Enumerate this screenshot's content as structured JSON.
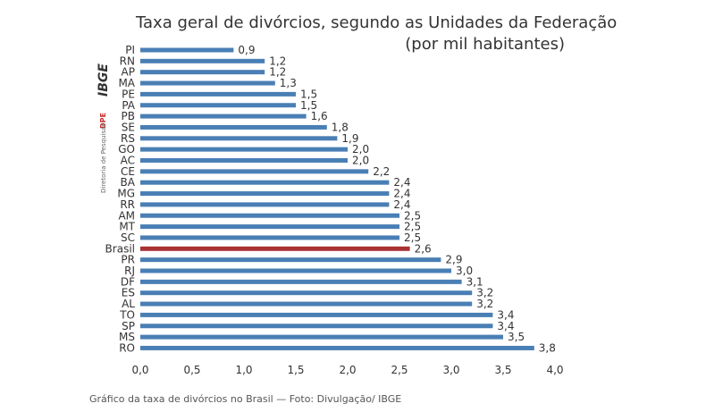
{
  "branding": {
    "logo": "IBGE",
    "department_abbr": "DPE",
    "department": "Diretoria de Pesquisas"
  },
  "caption": "Gráfico da taxa de divórcios no Brasil — Foto: Divulgação/ IBGE",
  "chart_data": {
    "type": "bar",
    "orientation": "horizontal",
    "title": "Taxa geral de divórcios, segundo as Unidades da Federação",
    "subtitle": "(por mil habitantes)",
    "xlabel": "",
    "ylabel": "",
    "xlim": [
      0,
      4.0
    ],
    "xticks": [
      "0,0",
      "0,5",
      "1,0",
      "1,5",
      "2,0",
      "2,5",
      "3,0",
      "3,5",
      "4,0"
    ],
    "categories": [
      "PI",
      "RN",
      "AP",
      "MA",
      "PE",
      "PA",
      "PB",
      "SE",
      "RS",
      "GO",
      "AC",
      "CE",
      "BA",
      "MG",
      "RR",
      "AM",
      "MT",
      "SC",
      "Brasil",
      "PR",
      "RJ",
      "DF",
      "ES",
      "AL",
      "TO",
      "SP",
      "MS",
      "RO"
    ],
    "values": [
      0.9,
      1.2,
      1.2,
      1.3,
      1.5,
      1.5,
      1.6,
      1.8,
      1.9,
      2.0,
      2.0,
      2.2,
      2.4,
      2.4,
      2.4,
      2.5,
      2.5,
      2.5,
      2.6,
      2.9,
      3.0,
      3.1,
      3.2,
      3.2,
      3.4,
      3.4,
      3.5,
      3.8
    ],
    "labels": [
      "0,9",
      "1,2",
      "1,2",
      "1,3",
      "1,5",
      "1,5",
      "1,6",
      "1,8",
      "1,9",
      "2,0",
      "2,0",
      "2,2",
      "2,4",
      "2,4",
      "2,4",
      "2,5",
      "2,5",
      "2,5",
      "2,6",
      "2,9",
      "3,0",
      "3,1",
      "3,2",
      "3,2",
      "3,4",
      "3,4",
      "3,5",
      "3,8"
    ],
    "highlight_category": "Brasil",
    "colors": {
      "bar": "#4a7fb5",
      "highlight": "#a83232"
    },
    "grid": false
  }
}
